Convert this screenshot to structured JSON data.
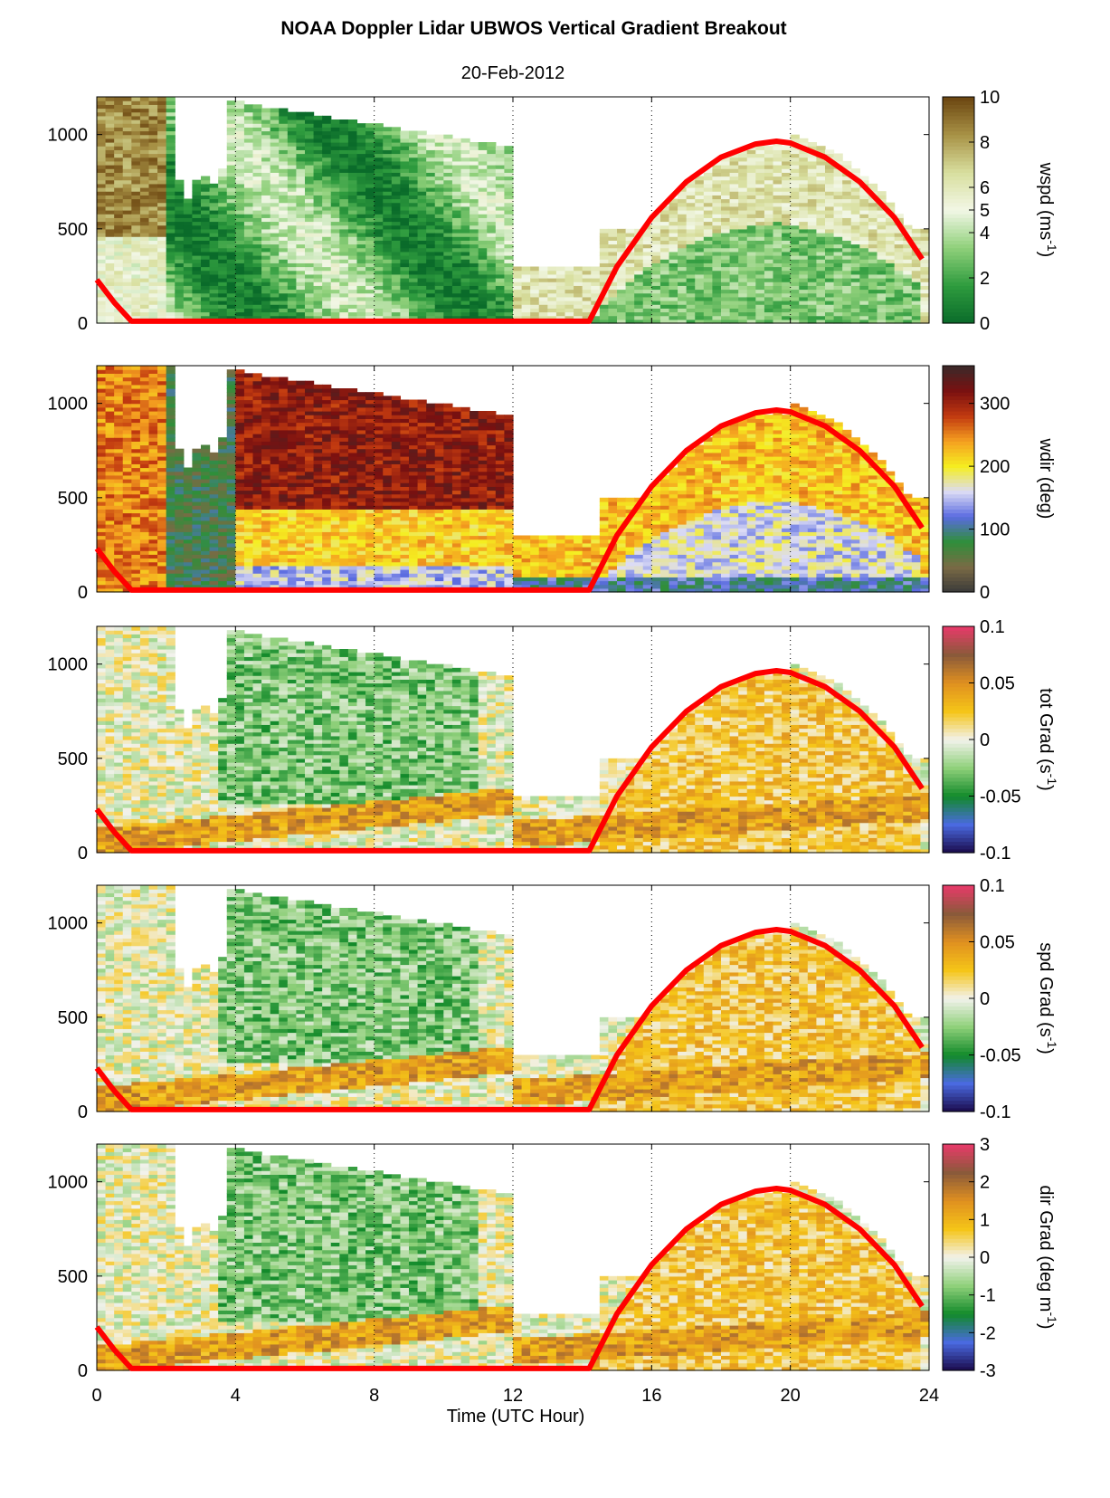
{
  "figure": {
    "title": "NOAA Doppler Lidar  UBWOS  Vertical Gradient Breakout",
    "subtitle": "20-Feb-2012",
    "xlabel": "Time (UTC Hour)"
  },
  "chart_data": [
    {
      "type": "heatmap",
      "name": "wspd",
      "colorbar_label": "wspd (ms",
      "colorbar_unit_sup": "-1",
      "colorbar_label_end": ")",
      "x": {
        "label": "Time (UTC Hour)",
        "range": [
          0,
          24
        ],
        "ticks": [
          0,
          4,
          8,
          12,
          16,
          20,
          24
        ]
      },
      "y": {
        "range": [
          0,
          1200
        ],
        "ticks": [
          0,
          500,
          1000
        ]
      },
      "colorbar": {
        "range": [
          0,
          10
        ],
        "ticks": [
          0,
          2,
          4,
          5,
          6,
          8,
          10
        ],
        "colors": [
          "#0a6b2a",
          "#2e9b3e",
          "#8fd07a",
          "#f2f7e6",
          "#d8df9e",
          "#a89246",
          "#6b4510"
        ]
      },
      "overlay_curve": {
        "color": "#ff0000",
        "points": [
          [
            0,
            230
          ],
          [
            0.5,
            110
          ],
          [
            1,
            10
          ],
          [
            14.2,
            10
          ],
          [
            15,
            300
          ],
          [
            16,
            560
          ],
          [
            17,
            750
          ],
          [
            18,
            880
          ],
          [
            19,
            950
          ],
          [
            19.6,
            965
          ],
          [
            20,
            955
          ],
          [
            21,
            880
          ],
          [
            22,
            750
          ],
          [
            23,
            560
          ],
          [
            23.8,
            340
          ]
        ]
      },
      "reference_lines": [
        4,
        8,
        12,
        16,
        20
      ]
    },
    {
      "type": "heatmap",
      "name": "wdir",
      "colorbar_label": "wdir (deg)",
      "x": {
        "range": [
          0,
          24
        ],
        "ticks": [
          0,
          4,
          8,
          12,
          16,
          20,
          24
        ]
      },
      "y": {
        "range": [
          0,
          1200
        ],
        "ticks": [
          0,
          500,
          1000
        ]
      },
      "colorbar": {
        "range": [
          0,
          360
        ],
        "ticks": [
          0,
          100,
          200,
          300
        ],
        "colors": [
          "#3a3a3a",
          "#7a6a45",
          "#2f8f3a",
          "#5a6be0",
          "#dcdcf5",
          "#f5ee20",
          "#f5a020",
          "#c23a10",
          "#7a1010",
          "#3a2a2a"
        ]
      },
      "overlay_curve": {
        "color": "#ff0000",
        "points": [
          [
            0,
            230
          ],
          [
            0.5,
            110
          ],
          [
            1,
            10
          ],
          [
            14.2,
            10
          ],
          [
            15,
            300
          ],
          [
            16,
            560
          ],
          [
            17,
            750
          ],
          [
            18,
            880
          ],
          [
            19,
            950
          ],
          [
            19.6,
            965
          ],
          [
            20,
            955
          ],
          [
            21,
            880
          ],
          [
            22,
            750
          ],
          [
            23,
            560
          ],
          [
            23.8,
            340
          ]
        ]
      },
      "reference_lines": [
        4,
        8,
        12,
        16,
        20
      ]
    },
    {
      "type": "heatmap",
      "name": "tot Grad",
      "colorbar_label": "tot Grad (s",
      "colorbar_unit_sup": "-1",
      "colorbar_label_end": ")",
      "x": {
        "range": [
          0,
          24
        ],
        "ticks": [
          0,
          4,
          8,
          12,
          16,
          20,
          24
        ]
      },
      "y": {
        "range": [
          0,
          1200
        ],
        "ticks": [
          0,
          500,
          1000
        ]
      },
      "colorbar": {
        "range": [
          -0.1,
          0.1
        ],
        "ticks": [
          -0.1,
          -0.05,
          0,
          0.05,
          0.1
        ],
        "tick_labels": [
          "-0.1",
          "-0.05",
          "0",
          "0.05",
          "0.1"
        ],
        "colors": [
          "#1a0a4a",
          "#4a6ae0",
          "#128a2a",
          "#8fd07a",
          "#f2f2ec",
          "#f5c518",
          "#e09020",
          "#8a5a3a",
          "#e83a6a"
        ]
      },
      "overlay_curve": {
        "color": "#ff0000",
        "points": [
          [
            0,
            230
          ],
          [
            0.5,
            110
          ],
          [
            1,
            10
          ],
          [
            14.2,
            10
          ],
          [
            15,
            300
          ],
          [
            16,
            560
          ],
          [
            17,
            750
          ],
          [
            18,
            880
          ],
          [
            19,
            950
          ],
          [
            19.6,
            965
          ],
          [
            20,
            955
          ],
          [
            21,
            880
          ],
          [
            22,
            750
          ],
          [
            23,
            560
          ],
          [
            23.8,
            340
          ]
        ]
      },
      "reference_lines": [
        4,
        8,
        12,
        16,
        20
      ]
    },
    {
      "type": "heatmap",
      "name": "spd Grad",
      "colorbar_label": "spd Grad (s",
      "colorbar_unit_sup": "-1",
      "colorbar_label_end": ")",
      "x": {
        "range": [
          0,
          24
        ],
        "ticks": [
          0,
          4,
          8,
          12,
          16,
          20,
          24
        ]
      },
      "y": {
        "range": [
          0,
          1200
        ],
        "ticks": [
          0,
          500,
          1000
        ]
      },
      "colorbar": {
        "range": [
          -0.1,
          0.1
        ],
        "ticks": [
          -0.1,
          -0.05,
          0,
          0.05,
          0.1
        ],
        "tick_labels": [
          "-0.1",
          "-0.05",
          "0",
          "0.05",
          "0.1"
        ],
        "colors": [
          "#1a0a4a",
          "#4a6ae0",
          "#128a2a",
          "#8fd07a",
          "#f2f2ec",
          "#f5c518",
          "#e09020",
          "#8a5a3a",
          "#e83a6a"
        ]
      },
      "overlay_curve": {
        "color": "#ff0000",
        "points": [
          [
            0,
            230
          ],
          [
            0.5,
            110
          ],
          [
            1,
            10
          ],
          [
            14.2,
            10
          ],
          [
            15,
            300
          ],
          [
            16,
            560
          ],
          [
            17,
            750
          ],
          [
            18,
            880
          ],
          [
            19,
            950
          ],
          [
            19.6,
            965
          ],
          [
            20,
            955
          ],
          [
            21,
            880
          ],
          [
            22,
            750
          ],
          [
            23,
            560
          ],
          [
            23.8,
            340
          ]
        ]
      },
      "reference_lines": [
        4,
        8,
        12,
        16,
        20
      ]
    },
    {
      "type": "heatmap",
      "name": "dir Grad",
      "colorbar_label": "dir Grad (deg m",
      "colorbar_unit_sup": "-1",
      "colorbar_label_end": ")",
      "x": {
        "range": [
          0,
          24
        ],
        "ticks": [
          0,
          4,
          8,
          12,
          16,
          20,
          24
        ]
      },
      "y": {
        "range": [
          0,
          1200
        ],
        "ticks": [
          0,
          500,
          1000
        ]
      },
      "colorbar": {
        "range": [
          -3,
          3
        ],
        "ticks": [
          -3,
          -2,
          -1,
          0,
          1,
          2,
          3
        ],
        "colors": [
          "#1a0a4a",
          "#4a6ae0",
          "#128a2a",
          "#8fd07a",
          "#f2f2ec",
          "#f5c518",
          "#e09020",
          "#8a5a3a",
          "#e83a6a"
        ]
      },
      "overlay_curve": {
        "color": "#ff0000",
        "points": [
          [
            0,
            230
          ],
          [
            0.5,
            110
          ],
          [
            1,
            10
          ],
          [
            14.2,
            10
          ],
          [
            15,
            300
          ],
          [
            16,
            560
          ],
          [
            17,
            750
          ],
          [
            18,
            880
          ],
          [
            19,
            950
          ],
          [
            19.6,
            965
          ],
          [
            20,
            955
          ],
          [
            21,
            880
          ],
          [
            22,
            750
          ],
          [
            23,
            560
          ],
          [
            23.8,
            340
          ]
        ]
      },
      "reference_lines": [
        4,
        8,
        12,
        16,
        20
      ]
    }
  ]
}
